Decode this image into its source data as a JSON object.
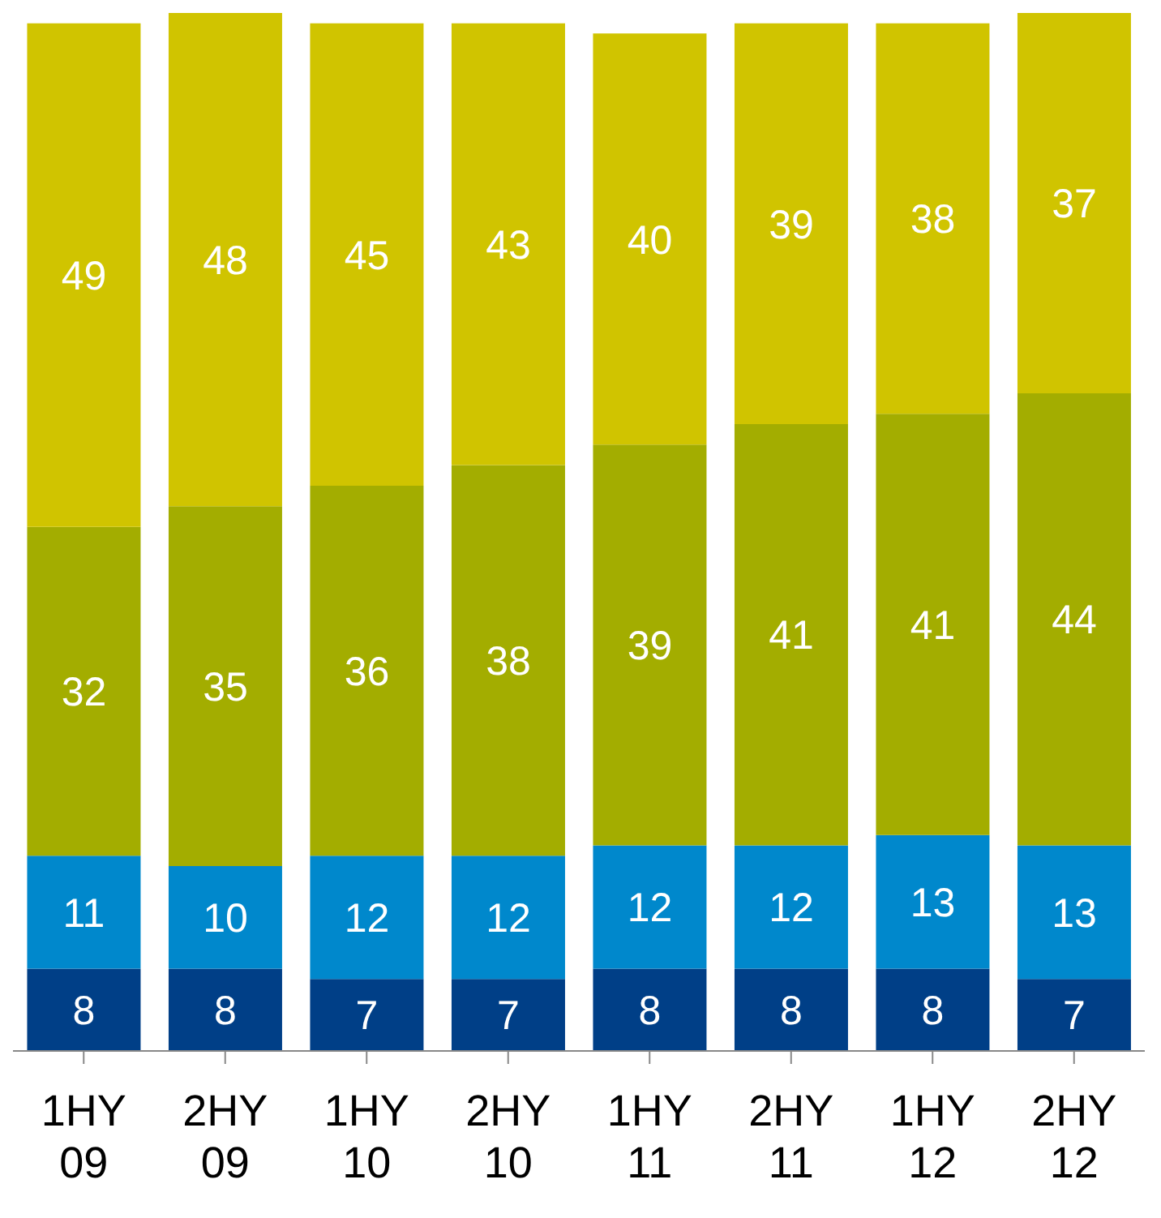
{
  "chart_data": {
    "type": "bar",
    "stacked": true,
    "data_labels": true,
    "categories": [
      "1HY 09",
      "2HY 09",
      "1HY 10",
      "2HY 10",
      "1HY 11",
      "2HY 11",
      "1HY 12",
      "2HY 12"
    ],
    "series": [
      {
        "color": "#003f87",
        "values": [
          8,
          8,
          7,
          7,
          8,
          8,
          8,
          7
        ]
      },
      {
        "color": "#0088cc",
        "values": [
          11,
          10,
          12,
          12,
          12,
          12,
          13,
          13
        ]
      },
      {
        "color": "#a3ad00",
        "values": [
          32,
          35,
          36,
          38,
          39,
          41,
          41,
          44
        ]
      },
      {
        "color": "#d0c400",
        "values": [
          49,
          48,
          45,
          43,
          40,
          39,
          38,
          37
        ]
      }
    ]
  }
}
